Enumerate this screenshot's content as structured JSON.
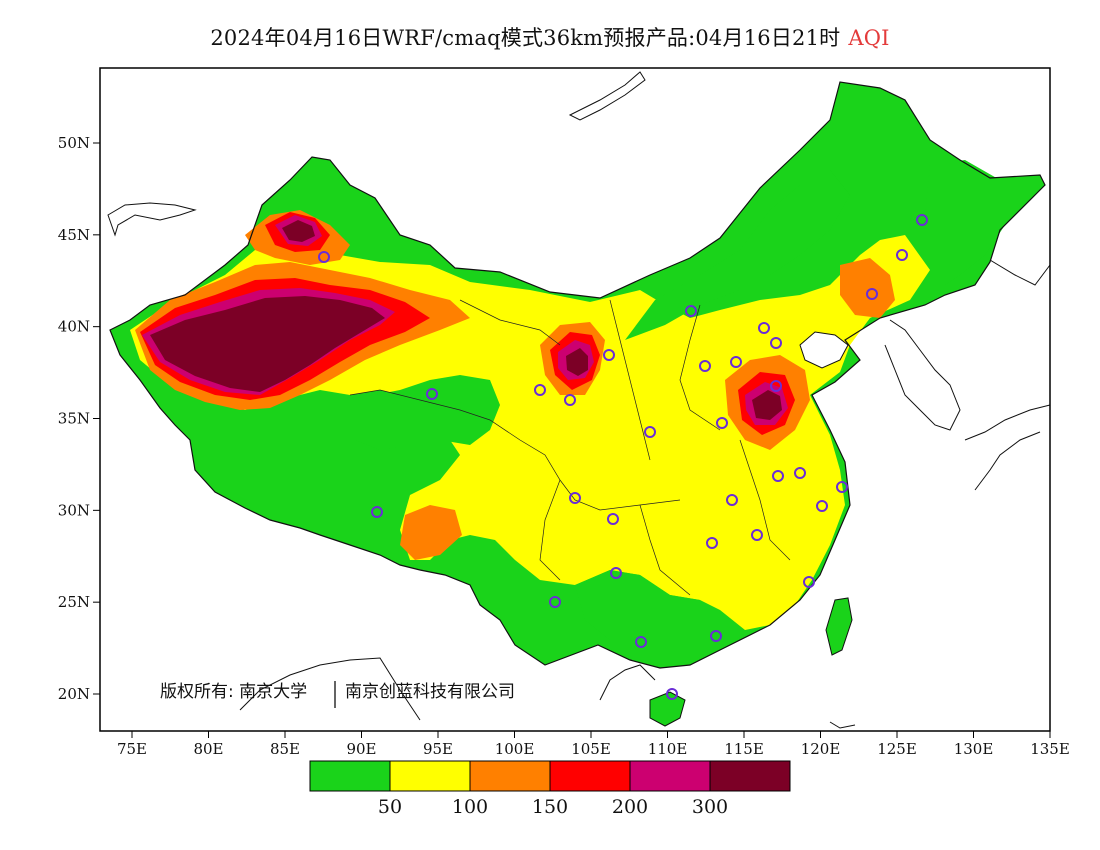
{
  "header": {
    "title": "2024年04月16日WRF/cmaq模式36km预报产品:04月16日21时",
    "variable": "AQI"
  },
  "axes": {
    "x_ticks": [
      "75E",
      "80E",
      "85E",
      "90E",
      "95E",
      "100E",
      "105E",
      "110E",
      "115E",
      "120E",
      "125E",
      "130E",
      "135E"
    ],
    "y_ticks": [
      "50N",
      "45N",
      "40N",
      "35N",
      "30N",
      "25N",
      "20N"
    ]
  },
  "copyright": {
    "text_a": "版权所有: 南京大学",
    "text_b": "南京创蓝科技有限公司"
  },
  "legend": {
    "colors": [
      "#1ad31a",
      "#ffff00",
      "#ff8000",
      "#ff0000",
      "#cc0070",
      "#7c0026"
    ],
    "labels": [
      "50",
      "100",
      "150",
      "200",
      "300"
    ]
  }
}
